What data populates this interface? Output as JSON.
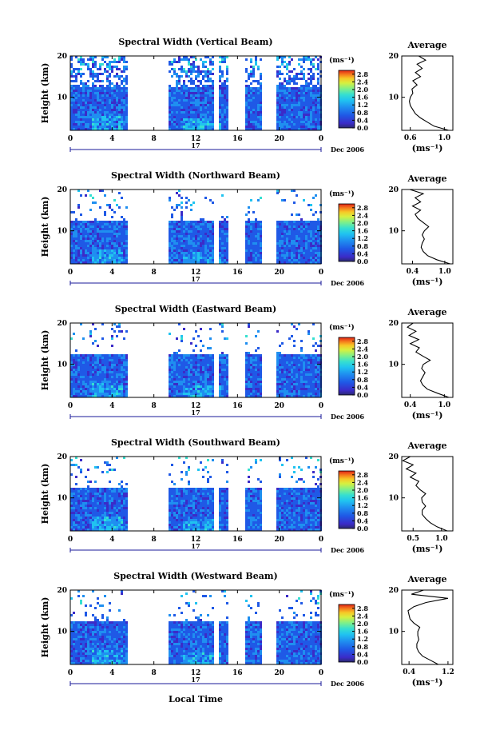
{
  "figure": {
    "xlabel_bottom": "Local Time",
    "ylabel": "Height (km)",
    "date_label": "Dec 2006",
    "day_label": "17",
    "avg_title": "Average",
    "avg_unit": "(ms⁻¹)",
    "cb_unit": "(ms⁻¹)",
    "colors": {
      "palette": [
        "#2a2a6e",
        "#3b2bc8",
        "#1f59e6",
        "#1f8ff0",
        "#20c3f0",
        "#36dfd0",
        "#7ef08a",
        "#d6f040",
        "#f7c826",
        "#f57a1c",
        "#e02216"
      ]
    }
  },
  "chart_data": [
    {
      "type": "heatmap",
      "title": "Spectral Width (Vertical Beam)",
      "x": {
        "range": [
          0,
          24
        ],
        "ticks": [
          "0",
          "4",
          "8",
          "12",
          "16",
          "20",
          "0"
        ]
      },
      "y": {
        "range": [
          2,
          20
        ],
        "ticks": [
          "10",
          "20"
        ]
      },
      "data_gaps_hours": [
        [
          5.5,
          9.2
        ],
        [
          13.7,
          14.2
        ],
        [
          15.0,
          16.7
        ],
        [
          18.3,
          19.5
        ]
      ],
      "colorbar": {
        "range": [
          0.0,
          3.0
        ],
        "ticks": [
          "2.8",
          "2.4",
          "2.0",
          "1.6",
          "1.2",
          "0.8",
          "0.4",
          "0.0"
        ]
      },
      "average": {
        "xlim": [
          0.5,
          1.1
        ],
        "xticks": [
          "0.6",
          "1.0"
        ],
        "yticks": [
          "10",
          "20"
        ],
        "profile": [
          [
            2,
            1.05
          ],
          [
            3,
            0.88
          ],
          [
            4,
            0.8
          ],
          [
            5,
            0.72
          ],
          [
            6,
            0.66
          ],
          [
            7,
            0.63
          ],
          [
            8,
            0.6
          ],
          [
            9,
            0.59
          ],
          [
            10,
            0.6
          ],
          [
            11,
            0.63
          ],
          [
            12,
            0.62
          ],
          [
            13,
            0.68
          ],
          [
            14,
            0.63
          ],
          [
            15,
            0.72
          ],
          [
            16,
            0.66
          ],
          [
            17,
            0.74
          ],
          [
            18,
            0.68
          ],
          [
            19,
            0.78
          ],
          [
            20,
            0.7
          ]
        ]
      }
    },
    {
      "type": "heatmap",
      "title": "Spectral Width (Northward Beam)",
      "x": {
        "range": [
          0,
          24
        ],
        "ticks": [
          "0",
          "4",
          "8",
          "12",
          "16",
          "20",
          "0"
        ]
      },
      "y": {
        "range": [
          2,
          20
        ],
        "ticks": [
          "10",
          "20"
        ]
      },
      "data_gaps_hours": [
        [
          5.5,
          9.2
        ],
        [
          13.7,
          14.2
        ],
        [
          15.0,
          16.7
        ],
        [
          18.3,
          19.5
        ]
      ],
      "colorbar": {
        "range": [
          0.0,
          3.0
        ],
        "ticks": [
          "2.8",
          "2.4",
          "2.0",
          "1.6",
          "1.2",
          "0.8",
          "0.4",
          "0.0"
        ]
      },
      "average": {
        "xlim": [
          0.2,
          1.15
        ],
        "xticks": [
          "0.4",
          "1.0"
        ],
        "yticks": [
          "10",
          "20"
        ],
        "profile": [
          [
            2,
            1.1
          ],
          [
            3,
            0.85
          ],
          [
            4,
            0.68
          ],
          [
            5,
            0.6
          ],
          [
            6,
            0.56
          ],
          [
            7,
            0.58
          ],
          [
            8,
            0.62
          ],
          [
            9,
            0.58
          ],
          [
            10,
            0.62
          ],
          [
            11,
            0.7
          ],
          [
            12,
            0.6
          ],
          [
            13,
            0.5
          ],
          [
            14,
            0.45
          ],
          [
            15,
            0.55
          ],
          [
            16,
            0.4
          ],
          [
            17,
            0.55
          ],
          [
            18,
            0.45
          ],
          [
            19,
            0.6
          ],
          [
            20,
            0.35
          ]
        ]
      }
    },
    {
      "type": "heatmap",
      "title": "Spectral Width (Eastward Beam)",
      "x": {
        "range": [
          0,
          24
        ],
        "ticks": [
          "0",
          "4",
          "8",
          "12",
          "16",
          "20",
          "0"
        ]
      },
      "y": {
        "range": [
          2,
          20
        ],
        "ticks": [
          "10",
          "20"
        ]
      },
      "data_gaps_hours": [
        [
          5.5,
          9.2
        ],
        [
          13.7,
          14.2
        ],
        [
          15.0,
          16.7
        ],
        [
          18.3,
          19.5
        ]
      ],
      "colorbar": {
        "range": [
          0.0,
          3.0
        ],
        "ticks": [
          "2.8",
          "2.4",
          "2.0",
          "1.6",
          "1.2",
          "0.8",
          "0.4",
          "0.0"
        ]
      },
      "average": {
        "xlim": [
          0.25,
          1.15
        ],
        "xticks": [
          "0.4",
          "1.0"
        ],
        "yticks": [
          "10",
          "20"
        ],
        "profile": [
          [
            2,
            1.08
          ],
          [
            3,
            0.88
          ],
          [
            4,
            0.7
          ],
          [
            5,
            0.62
          ],
          [
            6,
            0.58
          ],
          [
            7,
            0.62
          ],
          [
            8,
            0.66
          ],
          [
            9,
            0.6
          ],
          [
            10,
            0.63
          ],
          [
            11,
            0.75
          ],
          [
            12,
            0.62
          ],
          [
            13,
            0.5
          ],
          [
            14,
            0.56
          ],
          [
            15,
            0.4
          ],
          [
            16,
            0.55
          ],
          [
            17,
            0.38
          ],
          [
            18,
            0.5
          ],
          [
            19,
            0.35
          ],
          [
            20,
            0.45
          ]
        ]
      }
    },
    {
      "type": "heatmap",
      "title": "Spectral Width (Southward Beam)",
      "x": {
        "range": [
          0,
          24
        ],
        "ticks": [
          "0",
          "4",
          "8",
          "12",
          "16",
          "20",
          "0"
        ]
      },
      "y": {
        "range": [
          2,
          20
        ],
        "ticks": [
          "10",
          "20"
        ]
      },
      "data_gaps_hours": [
        [
          5.5,
          9.2
        ],
        [
          13.7,
          14.2
        ],
        [
          15.0,
          16.7
        ],
        [
          18.3,
          19.5
        ]
      ],
      "colorbar": {
        "range": [
          0.0,
          3.0
        ],
        "ticks": [
          "2.8",
          "2.4",
          "2.0",
          "1.6",
          "1.2",
          "0.8",
          "0.4",
          "0.0"
        ]
      },
      "average": {
        "xlim": [
          0.3,
          1.2
        ],
        "xticks": [
          "0.5",
          "1.0"
        ],
        "yticks": [
          "10",
          "20"
        ],
        "profile": [
          [
            2,
            1.1
          ],
          [
            3,
            0.92
          ],
          [
            4,
            0.8
          ],
          [
            5,
            0.72
          ],
          [
            6,
            0.66
          ],
          [
            7,
            0.66
          ],
          [
            8,
            0.72
          ],
          [
            9,
            0.66
          ],
          [
            10,
            0.65
          ],
          [
            11,
            0.72
          ],
          [
            12,
            0.62
          ],
          [
            13,
            0.55
          ],
          [
            14,
            0.6
          ],
          [
            15,
            0.45
          ],
          [
            16,
            0.55
          ],
          [
            17,
            0.38
          ],
          [
            18,
            0.5
          ],
          [
            19,
            0.32
          ],
          [
            20,
            0.45
          ]
        ]
      }
    },
    {
      "type": "heatmap",
      "title": "Spectral Width (Westward Beam)",
      "x": {
        "range": [
          0,
          24
        ],
        "ticks": [
          "0",
          "4",
          "8",
          "12",
          "16",
          "20",
          "0"
        ]
      },
      "y": {
        "range": [
          2,
          20
        ],
        "ticks": [
          "10",
          "20"
        ]
      },
      "data_gaps_hours": [
        [
          5.5,
          9.2
        ],
        [
          13.7,
          14.2
        ],
        [
          15.0,
          16.7
        ],
        [
          18.3,
          19.5
        ]
      ],
      "colorbar": {
        "range": [
          0.0,
          3.0
        ],
        "ticks": [
          "2.8",
          "2.4",
          "2.0",
          "1.6",
          "1.2",
          "0.8",
          "0.4",
          "0.0"
        ]
      },
      "average": {
        "xlim": [
          0.25,
          1.3
        ],
        "xticks": [
          "0.4",
          "1.2"
        ],
        "yticks": [
          "10",
          "20"
        ],
        "profile": [
          [
            2,
            1.0
          ],
          [
            3,
            0.84
          ],
          [
            4,
            0.68
          ],
          [
            5,
            0.6
          ],
          [
            6,
            0.56
          ],
          [
            7,
            0.56
          ],
          [
            8,
            0.6
          ],
          [
            9,
            0.58
          ],
          [
            10,
            0.58
          ],
          [
            11,
            0.62
          ],
          [
            12,
            0.5
          ],
          [
            13,
            0.42
          ],
          [
            14,
            0.4
          ],
          [
            15,
            0.38
          ],
          [
            16,
            0.5
          ],
          [
            17,
            0.75
          ],
          [
            18,
            1.2
          ],
          [
            19,
            0.45
          ],
          [
            20,
            0.7
          ]
        ]
      }
    }
  ]
}
